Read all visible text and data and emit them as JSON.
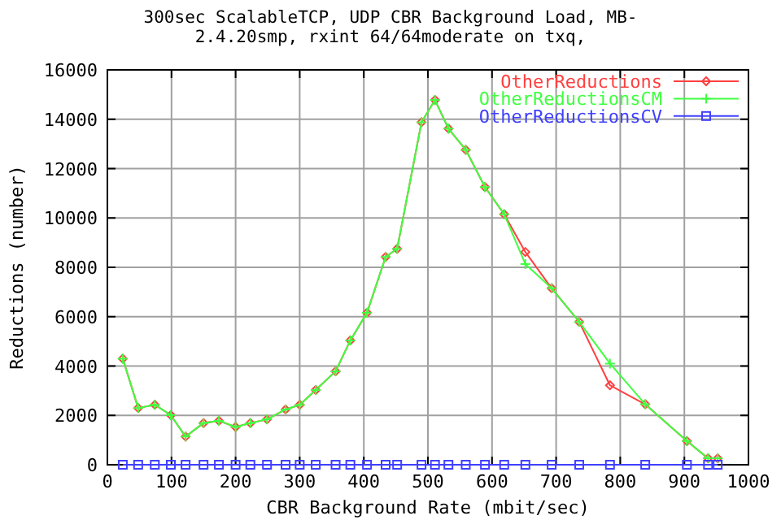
{
  "chart_data": {
    "type": "line",
    "title": "300sec ScalableTCP, UDP CBR Background Load, MB-",
    "subtitle": "2.4.20smp, rxint 64/64moderate on txq,",
    "xlabel": "CBR Background Rate (mbit/sec)",
    "ylabel": "Reductions (number)",
    "x": [
      24,
      48,
      74,
      99,
      122,
      150,
      174,
      200,
      223,
      249,
      278,
      300,
      325,
      356,
      379,
      405,
      434,
      452,
      490,
      511,
      532,
      559,
      589,
      619,
      652,
      693,
      736,
      784,
      839,
      904,
      937,
      952
    ],
    "series": [
      {
        "name": "OtherReductions",
        "color": "#ff4040",
        "marker": "diamond",
        "values": [
          4300,
          2300,
          2430,
          2010,
          1140,
          1690,
          1780,
          1530,
          1690,
          1840,
          2240,
          2430,
          3030,
          3790,
          5040,
          6160,
          8420,
          8750,
          13880,
          14780,
          13620,
          12760,
          11250,
          10150,
          8620,
          7150,
          5790,
          3220,
          2450,
          960,
          260,
          260
        ]
      },
      {
        "name": "OtherReductionsCM",
        "color": "#40ff40",
        "marker": "cross",
        "values": [
          4300,
          2300,
          2430,
          2010,
          1140,
          1690,
          1780,
          1530,
          1690,
          1840,
          2240,
          2430,
          3030,
          3790,
          5040,
          6160,
          8420,
          8750,
          13880,
          14780,
          13620,
          12760,
          11250,
          10150,
          8130,
          7150,
          5790,
          4100,
          2450,
          960,
          260,
          260
        ]
      },
      {
        "name": "OtherReductionsCV",
        "color": "#4040ff",
        "marker": "square",
        "values": [
          0,
          0,
          0,
          0,
          0,
          0,
          0,
          0,
          0,
          0,
          0,
          0,
          0,
          0,
          0,
          0,
          0,
          0,
          0,
          0,
          0,
          0,
          0,
          0,
          0,
          0,
          0,
          0,
          0,
          0,
          0,
          0
        ]
      }
    ],
    "xlim": [
      0,
      1000
    ],
    "xticks": [
      0,
      100,
      200,
      300,
      400,
      500,
      600,
      700,
      800,
      900,
      1000
    ],
    "ylim": [
      0,
      16000
    ],
    "yticks": [
      0,
      2000,
      4000,
      6000,
      8000,
      10000,
      12000,
      14000,
      16000
    ],
    "grid": true,
    "legend": "top right",
    "line_style": "solid"
  }
}
